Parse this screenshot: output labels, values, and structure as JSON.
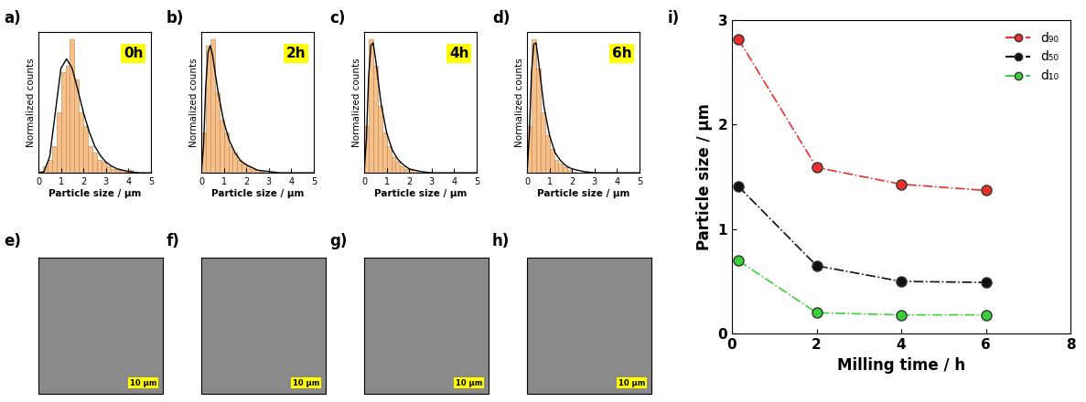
{
  "chart_data": [
    {
      "type": "histogram",
      "panel": "a)",
      "title": "0h",
      "xlabel": "Particle size / µm",
      "ylabel": "Normalized counts",
      "bins": [
        0.2,
        0.4,
        0.6,
        0.8,
        1.0,
        1.2,
        1.4,
        1.6,
        1.8,
        2.0,
        2.2,
        2.4,
        2.6,
        2.8,
        3.0,
        3.2,
        3.4,
        3.6,
        3.8,
        4.0,
        4.2
      ],
      "counts": [
        0.05,
        0.1,
        0.2,
        0.45,
        0.75,
        0.8,
        1.0,
        0.7,
        0.45,
        0.35,
        0.2,
        0.15,
        0.1,
        0.08,
        0.05,
        0.03,
        0.02,
        0.02,
        0.01,
        0.02
      ],
      "color": "#f5c08a",
      "fit": {
        "x": [
          0,
          0.25,
          0.5,
          0.75,
          1.0,
          1.25,
          1.5,
          1.75,
          2.0,
          2.25,
          2.5,
          2.75,
          3.0,
          3.25,
          3.5,
          3.75,
          4.0,
          4.5,
          5.0
        ],
        "values": [
          0,
          0.01,
          0.12,
          0.45,
          0.78,
          0.85,
          0.78,
          0.62,
          0.45,
          0.31,
          0.2,
          0.13,
          0.08,
          0.05,
          0.03,
          0.02,
          0.01,
          0.0,
          0.0
        ],
        "color": "#000000"
      },
      "xlim": [
        0,
        5
      ],
      "xticks": [
        0,
        1,
        2,
        3,
        4,
        5
      ],
      "ylim": [
        0,
        1.05
      ],
      "yticks": [],
      "tick_labels": "x"
    },
    {
      "type": "histogram",
      "panel": "b)",
      "title": "2h",
      "xlabel": "Particle size / µm",
      "ylabel": "Normalized counts",
      "bins": [
        0.0,
        0.2,
        0.4,
        0.6,
        0.8,
        1.0,
        1.2,
        1.4,
        1.6,
        1.8,
        2.0,
        2.2,
        2.4,
        2.6,
        2.8
      ],
      "counts": [
        0.3,
        0.95,
        1.0,
        0.6,
        0.4,
        0.3,
        0.2,
        0.15,
        0.1,
        0.07,
        0.05,
        0.03,
        0.02,
        0.01
      ],
      "color": "#f5c08a",
      "fit": {
        "x": [
          0,
          0.1,
          0.2,
          0.3,
          0.4,
          0.5,
          0.75,
          1.0,
          1.25,
          1.5,
          1.75,
          2.0,
          2.5,
          3.0,
          3.5,
          5.0
        ],
        "values": [
          0,
          0.2,
          0.65,
          0.9,
          0.95,
          0.88,
          0.6,
          0.38,
          0.24,
          0.15,
          0.09,
          0.06,
          0.02,
          0.01,
          0.0,
          0.0
        ],
        "color": "#000000"
      },
      "xlim": [
        0,
        5
      ],
      "xticks": [
        0,
        1,
        2,
        3,
        4,
        5
      ],
      "ylim": [
        0,
        1.05
      ],
      "yticks": [],
      "tick_labels": "x"
    },
    {
      "type": "histogram",
      "panel": "c)",
      "title": "4h",
      "xlabel": "Particle size / µm",
      "ylabel": "Normalized counts",
      "bins": [
        0.0,
        0.2,
        0.4,
        0.6,
        0.8,
        1.0,
        1.2,
        1.4,
        1.6,
        1.8,
        2.0,
        2.2,
        2.4
      ],
      "counts": [
        0.35,
        1.0,
        0.8,
        0.5,
        0.3,
        0.2,
        0.12,
        0.08,
        0.05,
        0.03,
        0.02,
        0.01
      ],
      "color": "#f5c08a",
      "fit": {
        "x": [
          0,
          0.1,
          0.2,
          0.3,
          0.4,
          0.5,
          0.75,
          1.0,
          1.25,
          1.5,
          1.75,
          2.0,
          2.5,
          3.0,
          5.0
        ],
        "values": [
          0,
          0.25,
          0.72,
          0.95,
          0.97,
          0.86,
          0.52,
          0.3,
          0.17,
          0.1,
          0.06,
          0.03,
          0.01,
          0.0,
          0.0
        ],
        "color": "#000000"
      },
      "xlim": [
        0,
        5
      ],
      "xticks": [
        0,
        1,
        2,
        3,
        4,
        5
      ],
      "ylim": [
        0,
        1.05
      ],
      "yticks": [],
      "tick_labels": "x"
    },
    {
      "type": "histogram",
      "panel": "d)",
      "title": "6h",
      "xlabel": "Particle size / µm",
      "ylabel": "Normalized counts",
      "bins": [
        0.0,
        0.2,
        0.4,
        0.6,
        0.8,
        1.0,
        1.2,
        1.4,
        1.6,
        1.8,
        2.0,
        2.2
      ],
      "counts": [
        0.35,
        1.0,
        0.78,
        0.45,
        0.28,
        0.18,
        0.1,
        0.07,
        0.04,
        0.02,
        0.01
      ],
      "color": "#f5c08a",
      "fit": {
        "x": [
          0,
          0.1,
          0.2,
          0.3,
          0.4,
          0.5,
          0.75,
          1.0,
          1.25,
          1.5,
          1.75,
          2.0,
          2.5,
          3.0,
          5.0
        ],
        "values": [
          0,
          0.27,
          0.75,
          0.96,
          0.97,
          0.85,
          0.5,
          0.28,
          0.15,
          0.09,
          0.05,
          0.03,
          0.01,
          0.0,
          0.0
        ],
        "color": "#000000"
      },
      "xlim": [
        0,
        5
      ],
      "xticks": [
        0,
        1,
        2,
        3,
        4,
        5
      ],
      "ylim": [
        0,
        1.05
      ],
      "yticks": [],
      "tick_labels": "x"
    },
    {
      "type": "line",
      "panel": "i)",
      "xlabel": "Milling time / h",
      "ylabel": "Particle size / µm",
      "x": [
        0.15,
        2,
        4,
        6
      ],
      "series": [
        {
          "name": "d₉₀",
          "color": "#e8302c",
          "values": [
            2.82,
            1.59,
            1.43,
            1.37
          ],
          "marker": "circle",
          "line_style": "dashdot"
        },
        {
          "name": "d₅₀",
          "color": "#111111",
          "values": [
            1.41,
            0.65,
            0.5,
            0.49
          ],
          "marker": "circle",
          "line_style": "dashdot"
        },
        {
          "name": "d₁₀",
          "color": "#3ccf3c",
          "values": [
            0.7,
            0.2,
            0.18,
            0.18
          ],
          "marker": "circle",
          "line_style": "dashdot"
        }
      ],
      "xlim": [
        0,
        8
      ],
      "xticks": [
        0,
        2,
        4,
        6,
        8
      ],
      "ylim": [
        0,
        3
      ],
      "yticks": [
        0,
        1,
        2,
        3
      ],
      "legend": "upper right"
    }
  ],
  "images": [
    {
      "panel": "e)",
      "scale_bar": "10 µm"
    },
    {
      "panel": "f)",
      "scale_bar": "10 µm"
    },
    {
      "panel": "g)",
      "scale_bar": "10 µm"
    },
    {
      "panel": "h)",
      "scale_bar": "10 µm"
    }
  ]
}
